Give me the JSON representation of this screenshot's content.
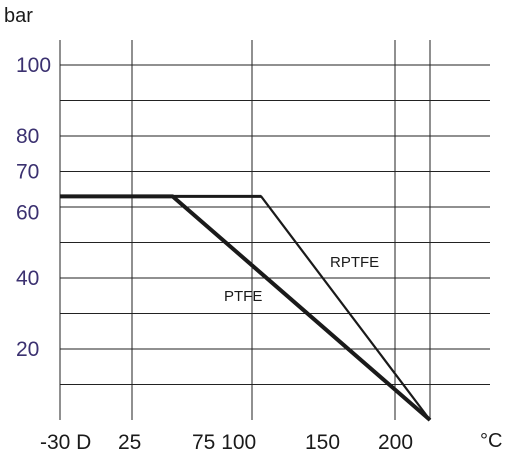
{
  "chart_data": {
    "type": "line",
    "ylabel": "bar",
    "xlabel": "°C",
    "y_ticks": [
      "100",
      "80",
      "70",
      "60",
      "40",
      "20"
    ],
    "x_ticks": [
      "-30 D",
      "25",
      "75 100",
      "150",
      "200"
    ],
    "ylim": [
      0,
      100
    ],
    "series": [
      {
        "name": "PTFE",
        "x": [
          -30,
          40,
          200
        ],
        "y": [
          63,
          63,
          0
        ],
        "color": "#1a1a1a"
      },
      {
        "name": "RPTFE",
        "x": [
          -30,
          95,
          200
        ],
        "y": [
          63,
          63,
          0
        ],
        "color": "#1a1a1a"
      }
    ]
  }
}
